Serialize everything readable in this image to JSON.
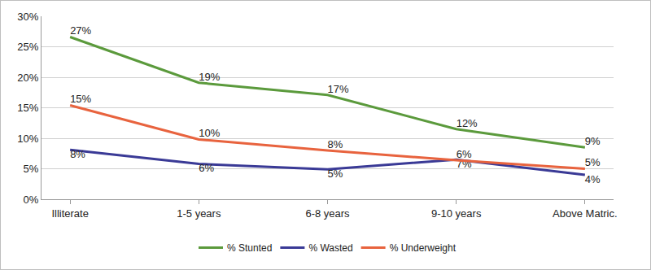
{
  "chart_data": {
    "type": "line",
    "categories": [
      "Illiterate",
      "1-5 years",
      "6-8 years",
      "9-10 years",
      "Above Matric."
    ],
    "series": [
      {
        "name": "% Stunted",
        "color": "#5b9a3c",
        "values": [
          26.6,
          19.1,
          17.1,
          11.5,
          8.5
        ],
        "value_labels": [
          "27%",
          "19%",
          "17%",
          "12%",
          "9%"
        ]
      },
      {
        "name": "% Wasted",
        "color": "#3a3a96",
        "values": [
          8.1,
          5.8,
          4.9,
          6.5,
          4.0
        ],
        "value_labels": [
          "8%",
          "6%",
          "5%",
          "7%",
          "4%"
        ]
      },
      {
        "name": "% Underweight",
        "color": "#e8633e",
        "values": [
          15.4,
          9.8,
          8.0,
          6.4,
          5.0
        ],
        "value_labels": [
          "15%",
          "10%",
          "8%",
          "6%",
          "5%"
        ]
      }
    ],
    "ylim": [
      0,
      30
    ],
    "yticks": [
      {
        "value": 0,
        "label": "0%"
      },
      {
        "value": 5,
        "label": "5%"
      },
      {
        "value": 10,
        "label": "10%"
      },
      {
        "value": 15,
        "label": "15%"
      },
      {
        "value": 20,
        "label": "20%"
      },
      {
        "value": 25,
        "label": "25%"
      },
      {
        "value": 30,
        "label": "30%"
      }
    ],
    "grid": true,
    "legend": "bottom",
    "data_labels": true
  }
}
